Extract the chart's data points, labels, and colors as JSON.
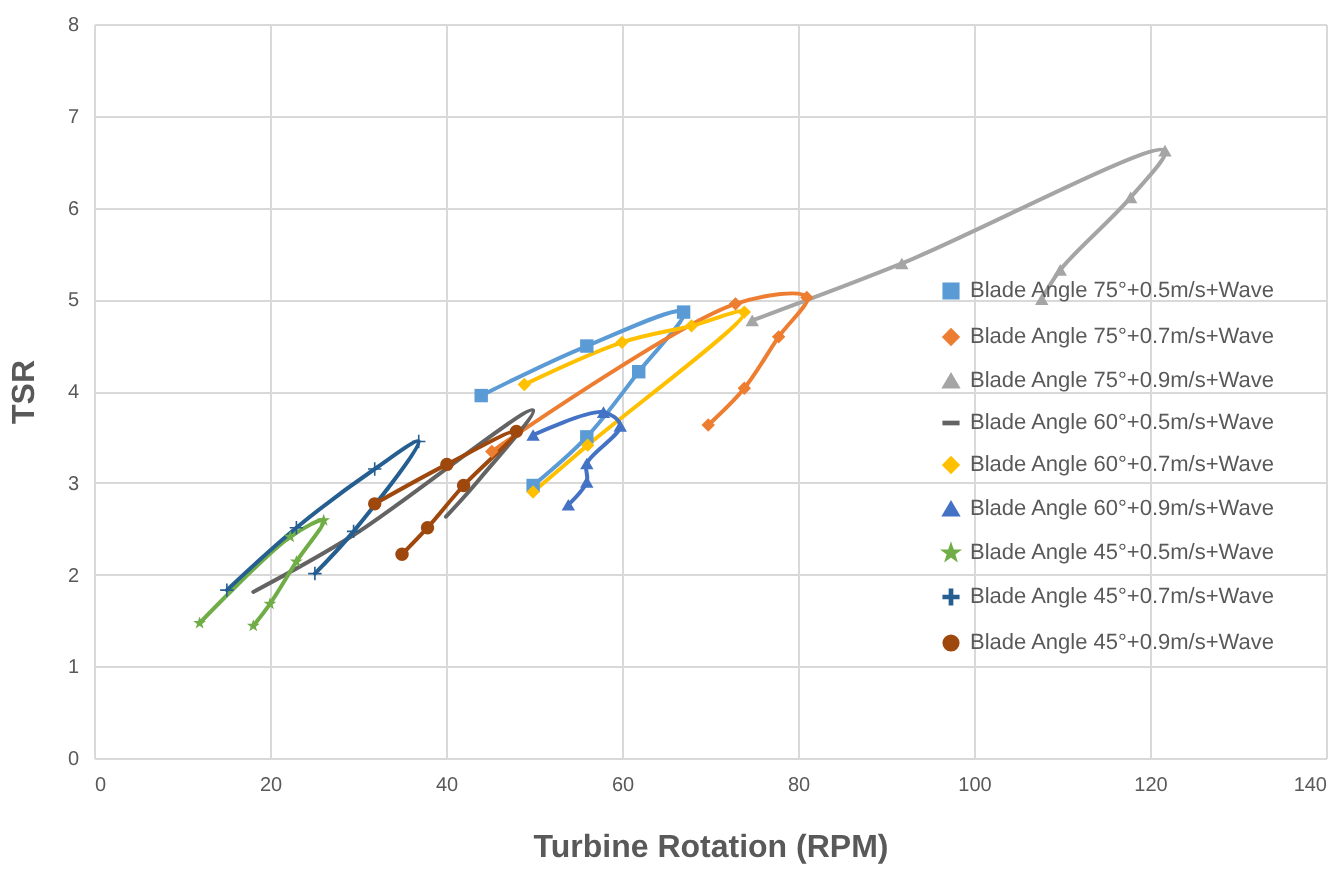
{
  "chart_data": {
    "type": "line",
    "xlabel": "Turbine Rotation (RPM)",
    "ylabel": "TSR",
    "xlim": [
      0,
      140
    ],
    "xticks": [
      0,
      20,
      40,
      60,
      80,
      100,
      120,
      140
    ],
    "ylim": [
      0,
      8
    ],
    "yticks": [
      0,
      1,
      2,
      3,
      4,
      5,
      6,
      7,
      8
    ],
    "grid": true,
    "legend": "right",
    "series": [
      {
        "name": "Blade Angle 75°+0.5m/s+Wave",
        "color": "#5b9bd5",
        "marker": "square",
        "x": [
          44,
          56,
          67,
          61.9,
          56,
          49.9
        ],
        "values": [
          3.95,
          4.49,
          4.86,
          4.21,
          3.5,
          2.97
        ]
      },
      {
        "name": "Blade Angle 75°+0.7m/s+Wave",
        "color": "#ed7d31",
        "marker": "diamond",
        "x": [
          45.2,
          72.9,
          81,
          77.8,
          73.9,
          69.8
        ],
        "values": [
          3.34,
          4.95,
          5.02,
          4.59,
          4.03,
          3.63
        ]
      },
      {
        "name": "Blade Angle 75°+0.9m/s+Wave",
        "color": "#a5a5a5",
        "marker": "triangle",
        "x": [
          74.8,
          91.8,
          121.7,
          117.8,
          109.8,
          107.7
        ],
        "values": [
          4.77,
          5.39,
          6.62,
          6.11,
          5.32,
          5.0
        ]
      },
      {
        "name": "Blade Angle 60°+0.5m/s+Wave",
        "color": "#636363",
        "marker": "none",
        "x": [
          18.1,
          29.5,
          49.9,
          43.9,
          40
        ],
        "values": [
          1.81,
          2.43,
          3.79,
          3.05,
          2.63
        ]
      },
      {
        "name": "Blade Angle 60°+0.7m/s+Wave",
        "color": "#ffc000",
        "marker": "diamond",
        "x": [
          48.9,
          60,
          67.9,
          73.9,
          56.1,
          49.9
        ],
        "values": [
          4.07,
          4.53,
          4.71,
          4.86,
          3.41,
          2.9
        ]
      },
      {
        "name": "Blade Angle 60°+0.9m/s+Wave",
        "color": "#4472c4",
        "marker": "triangle",
        "x": [
          49.9,
          57.9,
          59.8,
          56,
          56,
          53.9
        ],
        "values": [
          3.52,
          3.77,
          3.62,
          3.21,
          3.01,
          2.76
        ]
      },
      {
        "name": "Blade Angle 45°+0.5m/s+Wave",
        "color": "#70ad47",
        "marker": "star",
        "x": [
          12,
          22.3,
          26.1,
          23,
          20,
          18.1
        ],
        "values": [
          1.47,
          2.41,
          2.59,
          2.14,
          1.68,
          1.44
        ]
      },
      {
        "name": "Blade Angle 45°+0.7m/s+Wave",
        "color": "#255e91",
        "marker": "cross",
        "x": [
          15.1,
          23,
          31.9,
          36.9,
          29.5,
          25.1
        ],
        "values": [
          1.83,
          2.51,
          3.15,
          3.45,
          2.47,
          2.01
        ]
      },
      {
        "name": "Blade Angle 45°+0.9m/s+Wave",
        "color": "#9e480e",
        "marker": "circle",
        "x": [
          31.9,
          40.1,
          48,
          42,
          37.9,
          35
        ],
        "values": [
          2.77,
          3.2,
          3.56,
          2.97,
          2.51,
          2.22
        ]
      }
    ]
  }
}
